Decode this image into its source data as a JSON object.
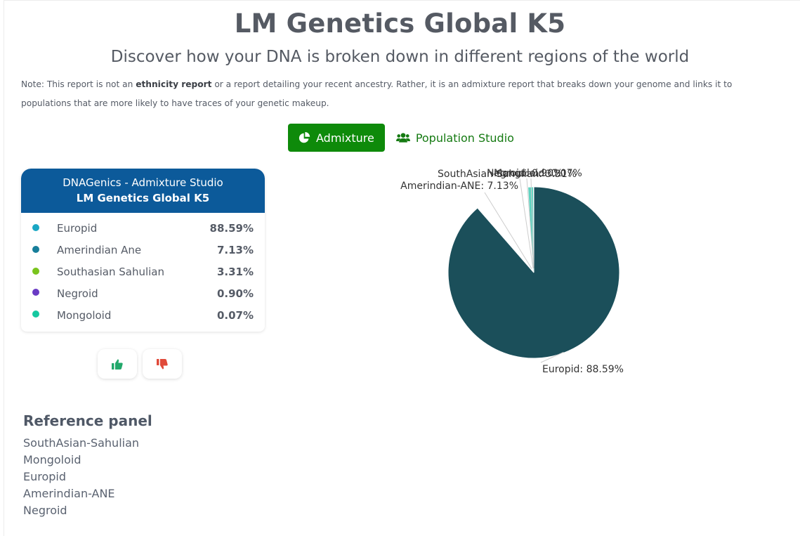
{
  "header": {
    "title": "LM Genetics Global K5",
    "subtitle": "Discover how your DNA is broken down in different regions of the world",
    "note_prefix": "Note: This report is not an ",
    "note_bold": "ethnicity report",
    "note_suffix": " or a report detailing your recent ancestry. Rather, it is an admixture report that breaks down your genome and links it to populations that are more likely to have traces of your genetic makeup."
  },
  "tabs": [
    {
      "label": "Admixture",
      "icon": "pie-chart-icon",
      "active": true
    },
    {
      "label": "Population Studio",
      "icon": "users-icon",
      "active": false
    }
  ],
  "card": {
    "title_line1": "DNAGenics - Admixture Studio",
    "title_line2": "LM Genetics Global K5",
    "rows": [
      {
        "name": "Europid",
        "value": "88.59%",
        "color": "#1aa7c4"
      },
      {
        "name": "Amerindian Ane",
        "value": "7.13%",
        "color": "#177e9a"
      },
      {
        "name": "Southasian Sahulian",
        "value": "3.31%",
        "color": "#7ac41d"
      },
      {
        "name": "Negroid",
        "value": "0.90%",
        "color": "#6a3bc4"
      },
      {
        "name": "Mongoloid",
        "value": "0.07%",
        "color": "#15c8a0"
      }
    ]
  },
  "votes": {
    "up_icon": "thumbs-up-icon",
    "up_color": "#22a86b",
    "down_icon": "thumbs-down-icon",
    "down_color": "#e04a3a"
  },
  "reference": {
    "title": "Reference panel",
    "items": [
      "SouthAsian-Sahulian",
      "Mongoloid",
      "Europid",
      "Amerindian-ANE",
      "Negroid"
    ]
  },
  "chart_data": {
    "type": "pie",
    "slices": [
      {
        "label": "Europid: 88.59%",
        "value": 88.59,
        "color": "#1b4f5a"
      },
      {
        "label": "Amerindian-ANE: 7.13%",
        "value": 7.13,
        "color": "#ffffff"
      },
      {
        "label": "SouthAsian-Sahulian: 3.31%",
        "value": 3.31,
        "color": "#ffffff"
      },
      {
        "label": "Negroid: 0.90%",
        "value": 0.9,
        "color": "#5fd3c0"
      },
      {
        "label": "Mongoloid: 0.07%",
        "value": 0.07,
        "color": "#ffffff"
      }
    ]
  }
}
